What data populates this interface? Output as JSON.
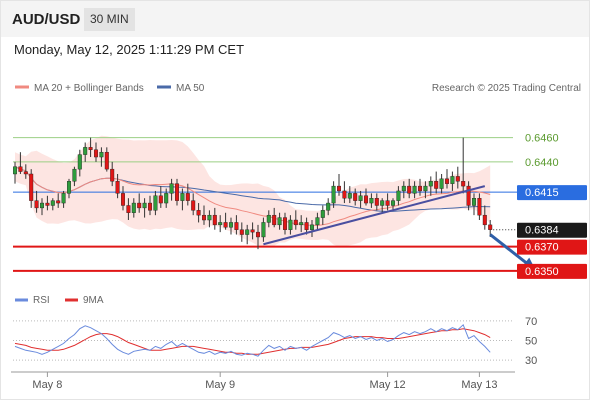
{
  "header": {
    "symbol": "AUD/USD",
    "timeframe": "30 MIN",
    "timestamp": "Monday, May 12, 2025 1:11:29 PM CET"
  },
  "legend": {
    "ma20_label": "MA 20 + Bollinger Bands",
    "ma50_label": "MA 50",
    "credit": "Research © 2025 Trading Central",
    "rsi_label": "RSI",
    "rsi_ma_label": "9MA"
  },
  "colors": {
    "bull": "#2e9c3c",
    "bear": "#e01616",
    "ma20": "#f08a80",
    "band_fill": "#fde0dd",
    "ma50": "#4a6aa8",
    "trendline": "#4a4fa0",
    "forecast_arrow": "#2f5fa8",
    "current_level": "#2a6de0",
    "support": "#e01616",
    "resistance_line": "#9bcf84",
    "resistance_text": "#5a9a2e",
    "rsi_line": "#6a8bdd",
    "rsi_ma_line": "#e03030"
  },
  "chart_data": [
    {
      "type": "candlestick",
      "title": "AUD/USD 30 MIN",
      "x_ticks": [
        "May 8",
        "May 9",
        "May 12",
        "May 13"
      ],
      "ylim": [
        0.634,
        0.6482
      ],
      "series": [
        {
          "name": "AUD/USD",
          "kind": "ohlc",
          "points": [
            [
              0.643,
              0.644,
              0.6422,
              0.6436
            ],
            [
              0.6436,
              0.6448,
              0.643,
              0.6432
            ],
            [
              0.6432,
              0.6438,
              0.6426,
              0.643
            ],
            [
              0.643,
              0.6434,
              0.6402,
              0.6408
            ],
            [
              0.6408,
              0.6416,
              0.6398,
              0.6402
            ],
            [
              0.6402,
              0.641,
              0.6396,
              0.6406
            ],
            [
              0.6406,
              0.6412,
              0.64,
              0.6404
            ],
            [
              0.6404,
              0.641,
              0.64,
              0.6408
            ],
            [
              0.6408,
              0.6414,
              0.6402,
              0.6406
            ],
            [
              0.6406,
              0.6416,
              0.6402,
              0.6414
            ],
            [
              0.6414,
              0.6426,
              0.641,
              0.6424
            ],
            [
              0.6424,
              0.6436,
              0.642,
              0.6434
            ],
            [
              0.6434,
              0.645,
              0.6428,
              0.6446
            ],
            [
              0.6446,
              0.6456,
              0.644,
              0.6452
            ],
            [
              0.6452,
              0.646,
              0.6444,
              0.645
            ],
            [
              0.645,
              0.6456,
              0.644,
              0.6444
            ],
            [
              0.6444,
              0.6452,
              0.6436,
              0.6448
            ],
            [
              0.6448,
              0.6452,
              0.6432,
              0.6434
            ],
            [
              0.6434,
              0.644,
              0.642,
              0.6424
            ],
            [
              0.6424,
              0.643,
              0.641,
              0.6414
            ],
            [
              0.6414,
              0.642,
              0.64,
              0.6404
            ],
            [
              0.6404,
              0.641,
              0.6392,
              0.6398
            ],
            [
              0.6398,
              0.641,
              0.6394,
              0.6406
            ],
            [
              0.6406,
              0.6414,
              0.6398,
              0.6402
            ],
            [
              0.6402,
              0.641,
              0.6394,
              0.6406
            ],
            [
              0.6406,
              0.6412,
              0.6396,
              0.64
            ],
            [
              0.64,
              0.6416,
              0.6396,
              0.6412
            ],
            [
              0.6412,
              0.642,
              0.6402,
              0.6406
            ],
            [
              0.6406,
              0.6418,
              0.6402,
              0.6414
            ],
            [
              0.6414,
              0.6426,
              0.6408,
              0.6422
            ],
            [
              0.6422,
              0.6426,
              0.6404,
              0.6408
            ],
            [
              0.6408,
              0.6418,
              0.64,
              0.6414
            ],
            [
              0.6414,
              0.6422,
              0.6404,
              0.6408
            ],
            [
              0.6408,
              0.6414,
              0.6396,
              0.64
            ],
            [
              0.64,
              0.6406,
              0.639,
              0.6396
            ],
            [
              0.6396,
              0.6404,
              0.6388,
              0.6392
            ],
            [
              0.6392,
              0.64,
              0.6386,
              0.6396
            ],
            [
              0.6396,
              0.6402,
              0.6384,
              0.6388
            ],
            [
              0.6388,
              0.6396,
              0.6382,
              0.639
            ],
            [
              0.639,
              0.6398,
              0.6384,
              0.6386
            ],
            [
              0.6386,
              0.6394,
              0.638,
              0.639
            ],
            [
              0.639,
              0.6396,
              0.638,
              0.6384
            ],
            [
              0.6384,
              0.639,
              0.6374,
              0.638
            ],
            [
              0.638,
              0.6388,
              0.6372,
              0.6384
            ],
            [
              0.6384,
              0.639,
              0.6376,
              0.6382
            ],
            [
              0.6382,
              0.6388,
              0.6368,
              0.6378
            ],
            [
              0.6378,
              0.6394,
              0.6374,
              0.639
            ],
            [
              0.639,
              0.64,
              0.6386,
              0.6396
            ],
            [
              0.6396,
              0.6402,
              0.6386,
              0.6388
            ],
            [
              0.6388,
              0.6398,
              0.6384,
              0.6394
            ],
            [
              0.6394,
              0.6398,
              0.638,
              0.6384
            ],
            [
              0.6384,
              0.6396,
              0.638,
              0.6392
            ],
            [
              0.6392,
              0.64,
              0.6384,
              0.6388
            ],
            [
              0.6388,
              0.6396,
              0.6382,
              0.639
            ],
            [
              0.639,
              0.6394,
              0.638,
              0.6384
            ],
            [
              0.6384,
              0.6392,
              0.6378,
              0.6388
            ],
            [
              0.6388,
              0.6398,
              0.6384,
              0.6394
            ],
            [
              0.6394,
              0.6404,
              0.6388,
              0.64
            ],
            [
              0.64,
              0.641,
              0.6396,
              0.6406
            ],
            [
              0.6406,
              0.6424,
              0.6402,
              0.642
            ],
            [
              0.642,
              0.643,
              0.6412,
              0.6416
            ],
            [
              0.6416,
              0.6424,
              0.6406,
              0.641
            ],
            [
              0.641,
              0.642,
              0.6406,
              0.6414
            ],
            [
              0.6414,
              0.6418,
              0.6404,
              0.6408
            ],
            [
              0.6408,
              0.6416,
              0.6402,
              0.6412
            ],
            [
              0.6412,
              0.6418,
              0.6404,
              0.6406
            ],
            [
              0.6406,
              0.6414,
              0.6402,
              0.641
            ],
            [
              0.641,
              0.6414,
              0.64,
              0.6404
            ],
            [
              0.6404,
              0.641,
              0.6398,
              0.6408
            ],
            [
              0.6408,
              0.6414,
              0.64,
              0.6404
            ],
            [
              0.6404,
              0.641,
              0.64,
              0.6408
            ],
            [
              0.6408,
              0.642,
              0.6404,
              0.6416
            ],
            [
              0.6416,
              0.6424,
              0.641,
              0.642
            ],
            [
              0.642,
              0.6426,
              0.641,
              0.6414
            ],
            [
              0.6414,
              0.6424,
              0.641,
              0.642
            ],
            [
              0.642,
              0.6426,
              0.6412,
              0.6416
            ],
            [
              0.6416,
              0.6424,
              0.641,
              0.642
            ],
            [
              0.642,
              0.6428,
              0.6412,
              0.6424
            ],
            [
              0.6424,
              0.6432,
              0.6414,
              0.6418
            ],
            [
              0.6418,
              0.643,
              0.6414,
              0.6426
            ],
            [
              0.6426,
              0.6434,
              0.6418,
              0.6422
            ],
            [
              0.6422,
              0.6432,
              0.6416,
              0.6428
            ],
            [
              0.6428,
              0.6436,
              0.6418,
              0.6424
            ],
            [
              0.6424,
              0.646,
              0.6414,
              0.642
            ],
            [
              0.642,
              0.6424,
              0.64,
              0.6404
            ],
            [
              0.6404,
              0.6414,
              0.6396,
              0.641
            ],
            [
              0.641,
              0.6414,
              0.6392,
              0.6396
            ],
            [
              0.6396,
              0.6404,
              0.6384,
              0.6388
            ],
            [
              0.6388,
              0.6392,
              0.6378,
              0.6384
            ]
          ]
        },
        {
          "name": "MA 20 + Bollinger Bands",
          "kind": "ma20_band",
          "period": 20
        },
        {
          "name": "MA 50",
          "kind": "ma50",
          "period": 50
        }
      ],
      "levels": [
        {
          "value": 0.646,
          "label": "0.6460",
          "kind": "resistance"
        },
        {
          "value": 0.644,
          "label": "0.6440",
          "kind": "resistance"
        },
        {
          "value": 0.6415,
          "label": "0.6415",
          "kind": "pivot"
        },
        {
          "value": 0.6384,
          "label": "0.6384",
          "kind": "last"
        },
        {
          "value": 0.637,
          "label": "0.6370",
          "kind": "support"
        },
        {
          "value": 0.635,
          "label": "0.6350",
          "kind": "support"
        }
      ],
      "trendline": {
        "from": [
          46,
          0.6372
        ],
        "to": [
          87,
          0.642
        ]
      },
      "forecast": {
        "from": [
          88,
          0.638
        ],
        "to": [
          96,
          0.6352
        ]
      }
    },
    {
      "type": "line",
      "title": "RSI",
      "y_ticks": [
        "70",
        "50",
        "30"
      ],
      "ylim": [
        22,
        78
      ],
      "series": [
        {
          "name": "RSI",
          "values": [
            44,
            42,
            40,
            39,
            38,
            36,
            38,
            41,
            44,
            47,
            52,
            56,
            62,
            65,
            63,
            60,
            57,
            52,
            46,
            41,
            38,
            36,
            39,
            40,
            41,
            40,
            44,
            42,
            46,
            49,
            44,
            47,
            44,
            41,
            38,
            37,
            39,
            36,
            38,
            37,
            39,
            36,
            35,
            37,
            36,
            34,
            40,
            45,
            42,
            44,
            40,
            44,
            42,
            43,
            40,
            44,
            47,
            50,
            53,
            58,
            56,
            53,
            55,
            52,
            54,
            51,
            53,
            50,
            52,
            49,
            51,
            55,
            58,
            56,
            59,
            57,
            59,
            62,
            59,
            62,
            60,
            63,
            61,
            66,
            52,
            55,
            49,
            44,
            38
          ]
        },
        {
          "name": "9MA",
          "values": [
            47,
            46,
            45,
            43,
            42,
            41,
            40,
            40,
            40,
            41,
            43,
            45,
            48,
            51,
            54,
            56,
            57,
            57,
            56,
            54,
            51,
            48,
            46,
            44,
            42,
            40,
            40,
            40,
            41,
            42,
            43,
            44,
            44,
            44,
            43,
            42,
            41,
            40,
            39,
            38,
            38,
            37,
            37,
            36,
            36,
            36,
            37,
            38,
            39,
            40,
            41,
            42,
            42,
            43,
            43,
            43,
            44,
            45,
            46,
            48,
            50,
            52,
            53,
            54,
            54,
            54,
            54,
            53,
            53,
            52,
            52,
            52,
            53,
            54,
            55,
            56,
            57,
            58,
            59,
            60,
            60,
            61,
            61,
            62,
            61,
            60,
            58,
            56,
            53
          ]
        }
      ]
    }
  ]
}
